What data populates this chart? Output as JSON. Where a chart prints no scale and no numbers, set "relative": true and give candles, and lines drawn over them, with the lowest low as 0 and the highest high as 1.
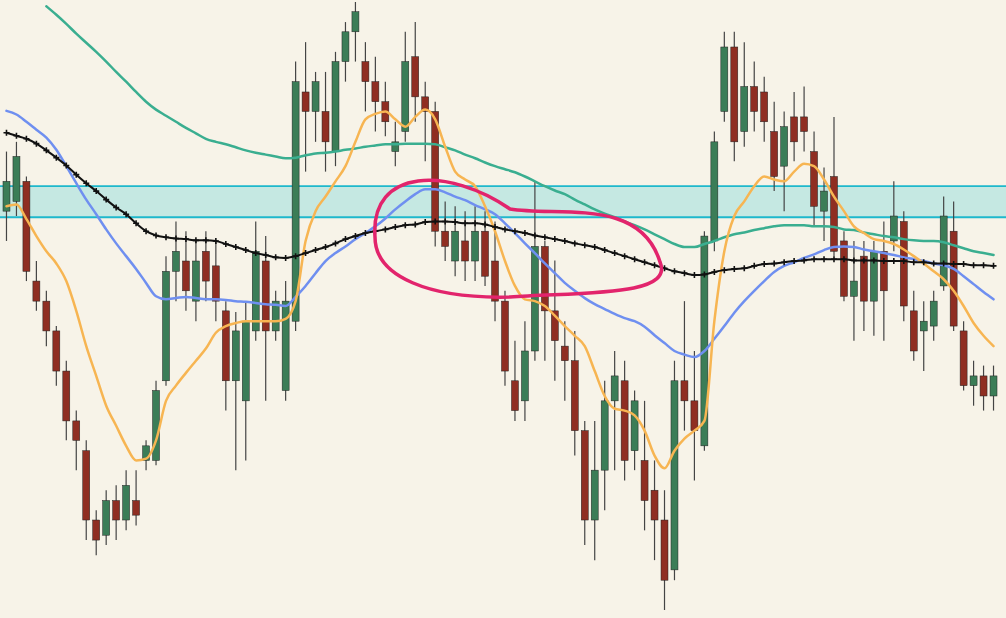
{
  "chart_data": {
    "type": "candlestick",
    "relative": true,
    "categories": [
      null,
      null,
      null,
      null,
      null,
      null,
      null,
      null,
      null,
      null,
      null,
      null,
      null,
      null,
      null,
      null,
      null,
      null,
      null,
      null,
      null,
      null,
      null,
      null,
      null,
      null,
      null,
      null,
      null,
      null,
      null,
      null,
      null,
      null,
      null,
      null,
      null,
      null,
      null,
      null,
      null,
      null,
      null,
      null,
      null,
      null,
      null,
      null,
      null,
      null,
      null,
      null,
      null,
      null,
      null,
      null,
      null,
      null,
      null,
      null,
      null,
      null,
      null,
      null,
      null,
      null,
      null,
      null,
      null,
      null,
      null,
      null,
      null,
      null,
      null,
      null,
      null,
      null,
      null,
      null,
      null,
      null,
      null,
      null,
      null,
      null,
      null,
      null,
      null,
      null,
      null,
      null,
      null,
      null,
      null,
      null,
      null,
      null,
      null,
      null
    ],
    "ohlc": [
      [
        0.656,
        0.754,
        0.607,
        0.705
      ],
      [
        0.672,
        0.77,
        0.648,
        0.746
      ],
      [
        0.705,
        0.713,
        0.541,
        0.557
      ],
      [
        0.541,
        0.574,
        0.492,
        0.508
      ],
      [
        0.508,
        0.525,
        0.434,
        0.459
      ],
      [
        0.459,
        0.467,
        0.369,
        0.393
      ],
      [
        0.393,
        0.41,
        0.279,
        0.311
      ],
      [
        0.311,
        0.328,
        0.23,
        0.279
      ],
      [
        0.262,
        0.279,
        0.115,
        0.148
      ],
      [
        0.148,
        0.164,
        0.09,
        0.115
      ],
      [
        0.123,
        0.197,
        0.107,
        0.18
      ],
      [
        0.18,
        0.205,
        0.115,
        0.148
      ],
      [
        0.148,
        0.23,
        0.131,
        0.205
      ],
      [
        0.18,
        0.23,
        0.139,
        0.156
      ],
      [
        0.246,
        0.279,
        0.23,
        0.27
      ],
      [
        0.246,
        0.377,
        0.238,
        0.361
      ],
      [
        0.377,
        0.582,
        0.369,
        0.557
      ],
      [
        0.557,
        0.639,
        0.508,
        0.59
      ],
      [
        0.574,
        0.623,
        0.492,
        0.525
      ],
      [
        0.508,
        0.607,
        0.475,
        0.574
      ],
      [
        0.59,
        0.623,
        0.508,
        0.541
      ],
      [
        0.566,
        0.607,
        0.475,
        0.508
      ],
      [
        0.492,
        0.508,
        0.328,
        0.377
      ],
      [
        0.377,
        0.49,
        0.23,
        0.459
      ],
      [
        0.344,
        0.508,
        0.246,
        0.475
      ],
      [
        0.459,
        0.639,
        0.443,
        0.59
      ],
      [
        0.574,
        0.615,
        0.344,
        0.459
      ],
      [
        0.459,
        0.525,
        0.443,
        0.508
      ],
      [
        0.361,
        0.541,
        0.344,
        0.508
      ],
      [
        0.475,
        0.902,
        0.459,
        0.869
      ],
      [
        0.852,
        0.934,
        0.721,
        0.82
      ],
      [
        0.82,
        0.885,
        0.77,
        0.869
      ],
      [
        0.82,
        0.885,
        0.721,
        0.77
      ],
      [
        0.754,
        0.918,
        0.73,
        0.902
      ],
      [
        0.902,
        0.967,
        0.869,
        0.951
      ],
      [
        0.951,
        1,
        0.902,
        0.984
      ],
      [
        0.902,
        0.934,
        0.82,
        0.869
      ],
      [
        0.869,
        0.91,
        0.787,
        0.836
      ],
      [
        0.836,
        0.869,
        0.779,
        0.803
      ],
      [
        0.754,
        0.803,
        0.73,
        0.77
      ],
      [
        0.787,
        0.951,
        0.77,
        0.902
      ],
      [
        0.91,
        0.967,
        0.803,
        0.844
      ],
      [
        0.844,
        0.869,
        0.738,
        0.82
      ],
      [
        0.82,
        0.836,
        0.598,
        0.623
      ],
      [
        0.623,
        0.672,
        0.574,
        0.598
      ],
      [
        0.574,
        0.664,
        0.549,
        0.623
      ],
      [
        0.607,
        0.656,
        0.541,
        0.574
      ],
      [
        0.574,
        0.664,
        0.541,
        0.623
      ],
      [
        0.623,
        0.656,
        0.533,
        0.549
      ],
      [
        0.574,
        0.639,
        0.475,
        0.508
      ],
      [
        0.508,
        0.525,
        0.369,
        0.393
      ],
      [
        0.377,
        0.443,
        0.311,
        0.328
      ],
      [
        0.344,
        0.475,
        0.311,
        0.426
      ],
      [
        0.426,
        0.705,
        0.41,
        0.598
      ],
      [
        0.598,
        0.607,
        0.41,
        0.492
      ],
      [
        0.492,
        0.575,
        0.377,
        0.443
      ],
      [
        0.434,
        0.475,
        0.344,
        0.41
      ],
      [
        0.41,
        0.459,
        0.254,
        0.295
      ],
      [
        0.295,
        0.311,
        0.107,
        0.148
      ],
      [
        0.148,
        0.311,
        0.082,
        0.23
      ],
      [
        0.23,
        0.377,
        0.164,
        0.344
      ],
      [
        0.344,
        0.426,
        0.23,
        0.385
      ],
      [
        0.377,
        0.41,
        0.213,
        0.246
      ],
      [
        0.262,
        0.361,
        0.23,
        0.344
      ],
      [
        0.246,
        0.344,
        0.131,
        0.18
      ],
      [
        0.197,
        0.246,
        0.082,
        0.148
      ],
      [
        0.148,
        0.197,
        0,
        0.049
      ],
      [
        0.066,
        0.41,
        0.049,
        0.377
      ],
      [
        0.377,
        0.508,
        0.295,
        0.344
      ],
      [
        0.344,
        0.426,
        0.213,
        0.295
      ],
      [
        0.27,
        0.623,
        0.262,
        0.615
      ],
      [
        0.607,
        0.787,
        0.59,
        0.77
      ],
      [
        0.82,
        0.951,
        0.803,
        0.926
      ],
      [
        0.926,
        0.951,
        0.738,
        0.77
      ],
      [
        0.787,
        0.934,
        0.762,
        0.861
      ],
      [
        0.861,
        0.902,
        0.787,
        0.82
      ],
      [
        0.852,
        0.877,
        0.77,
        0.803
      ],
      [
        0.787,
        0.836,
        0.689,
        0.713
      ],
      [
        0.73,
        0.82,
        0.656,
        0.795
      ],
      [
        0.811,
        0.852,
        0.738,
        0.77
      ],
      [
        0.811,
        0.861,
        0.754,
        0.787
      ],
      [
        0.754,
        0.787,
        0.631,
        0.664
      ],
      [
        0.656,
        0.728,
        0.607,
        0.689
      ],
      [
        0.713,
        0.811,
        0.582,
        0.59
      ],
      [
        0.607,
        0.623,
        0.508,
        0.516
      ],
      [
        0.516,
        0.607,
        0.443,
        0.541
      ],
      [
        0.582,
        0.607,
        0.459,
        0.508
      ],
      [
        0.508,
        0.607,
        0.451,
        0.59
      ],
      [
        0.59,
        0.639,
        0.443,
        0.525
      ],
      [
        0.607,
        0.705,
        0.59,
        0.648
      ],
      [
        0.639,
        0.656,
        0.475,
        0.5
      ],
      [
        0.492,
        0.525,
        0.41,
        0.426
      ],
      [
        0.459,
        0.508,
        0.393,
        0.475
      ],
      [
        0.467,
        0.525,
        0.443,
        0.508
      ],
      [
        0.533,
        0.68,
        0.525,
        0.648
      ],
      [
        0.623,
        0.672,
        0.459,
        0.467
      ],
      [
        0.459,
        0.475,
        0.361,
        0.369
      ],
      [
        0.369,
        0.41,
        0.336,
        0.385
      ],
      [
        0.385,
        0.402,
        0.328,
        0.352
      ],
      [
        0.352,
        0.402,
        0.328,
        0.385
      ]
    ],
    "colors": [
      "#3b7d57",
      "#3b7d57",
      "#8f2e22",
      "#8f2e22",
      "#8f2e22",
      "#8f2e22",
      "#8f2e22",
      "#8f2e22",
      "#8f2e22",
      "#8f2e22",
      "#3b7d57",
      "#8f2e22",
      "#3b7d57",
      "#8f2e22",
      "#3b7d57",
      "#3b7d57",
      "#3b7d57",
      "#3b7d57",
      "#8f2e22",
      "#3b7d57",
      "#8f2e22",
      "#8f2e22",
      "#8f2e22",
      "#3b7d57",
      "#3b7d57",
      "#3b7d57",
      "#8f2e22",
      "#3b7d57",
      "#3b7d57",
      "#3b7d57",
      "#8f2e22",
      "#3b7d57",
      "#8f2e22",
      "#3b7d57",
      "#3b7d57",
      "#3b7d57",
      "#8f2e22",
      "#8f2e22",
      "#8f2e22",
      "#3b7d57",
      "#3b7d57",
      "#8f2e22",
      "#8f2e22",
      "#8f2e22",
      "#8f2e22",
      "#3b7d57",
      "#8f2e22",
      "#3b7d57",
      "#8f2e22",
      "#8f2e22",
      "#8f2e22",
      "#8f2e22",
      "#3b7d57",
      "#3b7d57",
      "#8f2e22",
      "#8f2e22",
      "#8f2e22",
      "#8f2e22",
      "#8f2e22",
      "#3b7d57",
      "#3b7d57",
      "#3b7d57",
      "#8f2e22",
      "#3b7d57",
      "#8f2e22",
      "#8f2e22",
      "#8f2e22",
      "#3b7d57",
      "#8f2e22",
      "#8f2e22",
      "#3b7d57",
      "#3b7d57",
      "#3b7d57",
      "#8f2e22",
      "#3b7d57",
      "#8f2e22",
      "#8f2e22",
      "#8f2e22",
      "#3b7d57",
      "#8f2e22",
      "#8f2e22",
      "#8f2e22",
      "#3b7d57",
      "#8f2e22",
      "#8f2e22",
      "#3b7d57",
      "#8f2e22",
      "#3b7d57",
      "#8f2e22",
      "#3b7d57",
      "#8f2e22",
      "#8f2e22",
      "#3b7d57",
      "#3b7d57",
      "#3b7d57",
      "#8f2e22",
      "#8f2e22",
      "#3b7d57",
      "#8f2e22",
      "#3b7d57"
    ],
    "series": [
      {
        "type": "line",
        "color": "#3aae90",
        "marker": "none",
        "values": [
          null,
          null,
          null,
          null,
          0.993,
          0.979,
          0.964,
          0.948,
          0.933,
          0.918,
          0.902,
          0.885,
          0.869,
          0.852,
          0.836,
          0.823,
          0.813,
          0.803,
          0.793,
          0.784,
          0.775,
          0.77,
          0.766,
          0.761,
          0.756,
          0.752,
          0.749,
          0.746,
          0.743,
          0.744,
          0.748,
          0.751,
          0.752,
          0.754,
          0.757,
          0.759,
          0.762,
          0.764,
          0.766,
          0.766,
          0.767,
          0.767,
          0.767,
          0.766,
          0.761,
          0.756,
          0.749,
          0.743,
          0.736,
          0.73,
          0.725,
          0.72,
          0.713,
          0.705,
          0.697,
          0.69,
          0.684,
          0.675,
          0.667,
          0.659,
          0.652,
          0.646,
          0.639,
          0.633,
          0.626,
          0.618,
          0.61,
          0.602,
          0.597,
          0.597,
          0.602,
          0.607,
          0.613,
          0.618,
          0.621,
          0.625,
          0.628,
          0.631,
          0.633,
          0.633,
          0.633,
          0.631,
          0.631,
          0.63,
          0.626,
          0.625,
          0.621,
          0.618,
          0.615,
          0.613,
          0.61,
          0.608,
          0.607,
          0.607,
          0.605,
          0.6,
          0.595,
          0.59,
          0.587,
          0.584
        ]
      },
      {
        "type": "line",
        "color": "#6f8ff0",
        "marker": "none",
        "values": [
          0.821,
          0.815,
          0.803,
          0.79,
          0.777,
          0.757,
          0.73,
          0.702,
          0.675,
          0.651,
          0.626,
          0.603,
          0.582,
          0.561,
          0.538,
          0.516,
          0.511,
          0.513,
          0.515,
          0.513,
          0.511,
          0.511,
          0.51,
          0.508,
          0.507,
          0.505,
          0.503,
          0.502,
          0.5,
          0.515,
          0.533,
          0.554,
          0.574,
          0.587,
          0.598,
          0.61,
          0.62,
          0.631,
          0.644,
          0.659,
          0.672,
          0.684,
          0.692,
          0.692,
          0.687,
          0.68,
          0.674,
          0.666,
          0.659,
          0.651,
          0.636,
          0.62,
          0.603,
          0.587,
          0.57,
          0.554,
          0.538,
          0.525,
          0.513,
          0.503,
          0.495,
          0.487,
          0.48,
          0.475,
          0.466,
          0.452,
          0.439,
          0.426,
          0.42,
          0.416,
          0.426,
          0.446,
          0.467,
          0.489,
          0.508,
          0.525,
          0.541,
          0.556,
          0.566,
          0.572,
          0.579,
          0.585,
          0.592,
          0.597,
          0.598,
          0.597,
          0.593,
          0.59,
          0.587,
          0.584,
          0.58,
          0.577,
          0.574,
          0.57,
          0.567,
          0.561,
          0.549,
          0.536,
          0.523,
          0.511
        ]
      },
      {
        "type": "line",
        "color": "#f7b552",
        "marker": "none",
        "values": [
          0.664,
          0.667,
          0.643,
          0.615,
          0.59,
          0.57,
          0.541,
          0.492,
          0.434,
          0.385,
          0.336,
          0.303,
          0.27,
          0.246,
          0.249,
          0.279,
          0.344,
          0.369,
          0.39,
          0.41,
          0.43,
          0.456,
          0.467,
          0.472,
          0.475,
          0.475,
          0.475,
          0.475,
          0.479,
          0.508,
          0.607,
          0.656,
          0.68,
          0.705,
          0.73,
          0.77,
          0.807,
          0.816,
          0.82,
          0.807,
          0.795,
          0.811,
          0.823,
          0.807,
          0.762,
          0.721,
          0.708,
          0.697,
          0.664,
          0.623,
          0.574,
          0.533,
          0.511,
          0.508,
          0.5,
          0.484,
          0.467,
          0.451,
          0.434,
          0.393,
          0.352,
          0.331,
          0.328,
          0.32,
          0.295,
          0.254,
          0.233,
          0.262,
          0.282,
          0.295,
          0.311,
          0.475,
          0.59,
          0.648,
          0.672,
          0.697,
          0.713,
          0.708,
          0.705,
          0.721,
          0.734,
          0.73,
          0.708,
          0.68,
          0.656,
          0.631,
          0.62,
          0.61,
          0.607,
          0.602,
          0.593,
          0.582,
          0.57,
          0.557,
          0.544,
          0.525,
          0.5,
          0.472,
          0.451,
          0.434
        ]
      },
      {
        "type": "line",
        "color": "#111111",
        "marker": "cross",
        "values": [
          0.785,
          0.78,
          0.775,
          0.767,
          0.756,
          0.744,
          0.731,
          0.716,
          0.702,
          0.689,
          0.675,
          0.662,
          0.651,
          0.636,
          0.623,
          0.616,
          0.613,
          0.611,
          0.61,
          0.608,
          0.608,
          0.607,
          0.602,
          0.597,
          0.592,
          0.587,
          0.584,
          0.58,
          0.579,
          0.582,
          0.587,
          0.592,
          0.597,
          0.603,
          0.61,
          0.615,
          0.62,
          0.623,
          0.626,
          0.63,
          0.633,
          0.634,
          0.638,
          0.639,
          0.639,
          0.638,
          0.636,
          0.636,
          0.634,
          0.63,
          0.626,
          0.623,
          0.62,
          0.616,
          0.613,
          0.61,
          0.607,
          0.603,
          0.6,
          0.597,
          0.592,
          0.587,
          0.582,
          0.577,
          0.572,
          0.567,
          0.562,
          0.557,
          0.554,
          0.551,
          0.552,
          0.556,
          0.559,
          0.561,
          0.562,
          0.566,
          0.569,
          0.57,
          0.572,
          0.574,
          0.575,
          0.577,
          0.577,
          0.577,
          0.577,
          0.575,
          0.575,
          0.575,
          0.574,
          0.574,
          0.574,
          0.572,
          0.572,
          0.57,
          0.57,
          0.569,
          0.569,
          0.567,
          0.567,
          0.566
        ]
      }
    ],
    "bands": [
      {
        "axis": "y",
        "from": 0.646,
        "to": 0.697,
        "color": "#c5e8e2"
      }
    ],
    "ref_lines": [
      {
        "axis": "y",
        "value": 0.697,
        "color": "#1eb8cc"
      },
      {
        "axis": "y",
        "value": 0.646,
        "color": "#1eb8cc"
      }
    ]
  }
}
